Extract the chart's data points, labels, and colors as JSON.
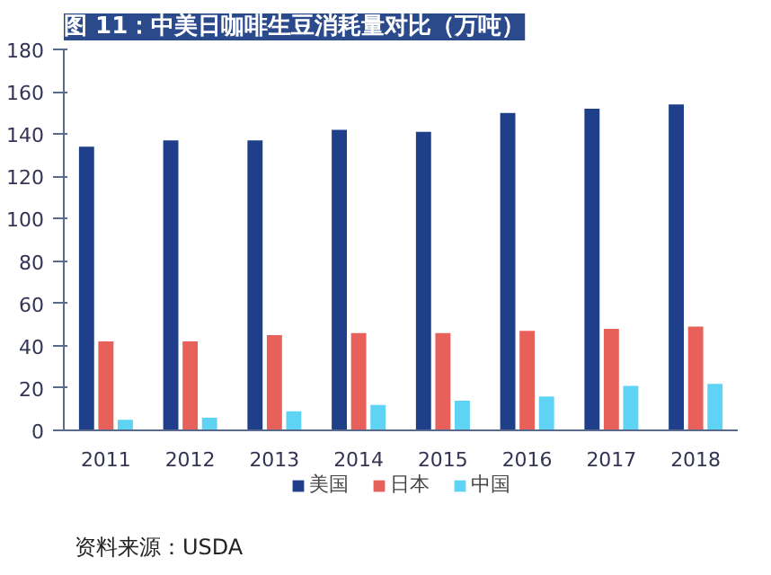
{
  "chart_data": {
    "type": "bar",
    "title": "图 11：中美日咖啡生豆消耗量对比（万吨）",
    "categories": [
      "2011",
      "2012",
      "2013",
      "2014",
      "2015",
      "2016",
      "2017",
      "2018"
    ],
    "series": [
      {
        "name": "美国",
        "color": "#1f3f8a",
        "values": [
          134,
          137,
          137,
          142,
          141,
          150,
          152,
          154
        ]
      },
      {
        "name": "日本",
        "color": "#e8605a",
        "values": [
          42,
          42,
          45,
          46,
          46,
          47,
          48,
          49
        ]
      },
      {
        "name": "中国",
        "color": "#5fd3f3",
        "values": [
          5,
          6,
          9,
          12,
          14,
          16,
          21,
          22
        ]
      }
    ],
    "ylim": [
      0,
      180
    ],
    "yticks": [
      0,
      20,
      40,
      60,
      80,
      100,
      120,
      140,
      160,
      180
    ],
    "grid": false,
    "legend": "bottom",
    "annotations": [
      "资料来源：USDA"
    ]
  }
}
